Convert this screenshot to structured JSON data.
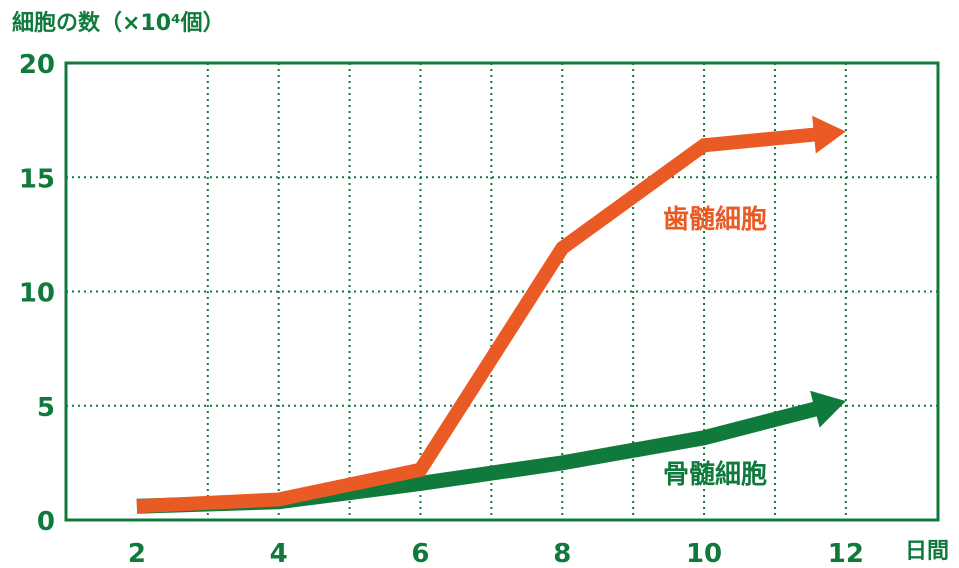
{
  "chart_data": {
    "type": "line",
    "ylabel": "細胞の数（×10⁴個）",
    "xlabel": "日間",
    "xlim": [
      1,
      13.3
    ],
    "ylim": [
      0,
      20
    ],
    "xticks": [
      "2",
      "4",
      "6",
      "8",
      "10",
      "12"
    ],
    "yticks": [
      "0",
      "5",
      "10",
      "15",
      "20"
    ],
    "grid": true,
    "series": [
      {
        "name": "骨髄細胞",
        "color": "#0f7a3b",
        "x": [
          2,
          4,
          6,
          8,
          10,
          12
        ],
        "y": [
          0.6,
          0.8,
          1.6,
          2.5,
          3.6,
          5.2
        ]
      },
      {
        "name": "歯髄細胞",
        "color": "#ea5a24",
        "x": [
          2,
          4,
          6,
          8,
          10,
          12
        ],
        "y": [
          0.6,
          0.9,
          2.2,
          11.9,
          16.4,
          17
        ]
      }
    ],
    "axis_color": "#0f7a3b"
  }
}
